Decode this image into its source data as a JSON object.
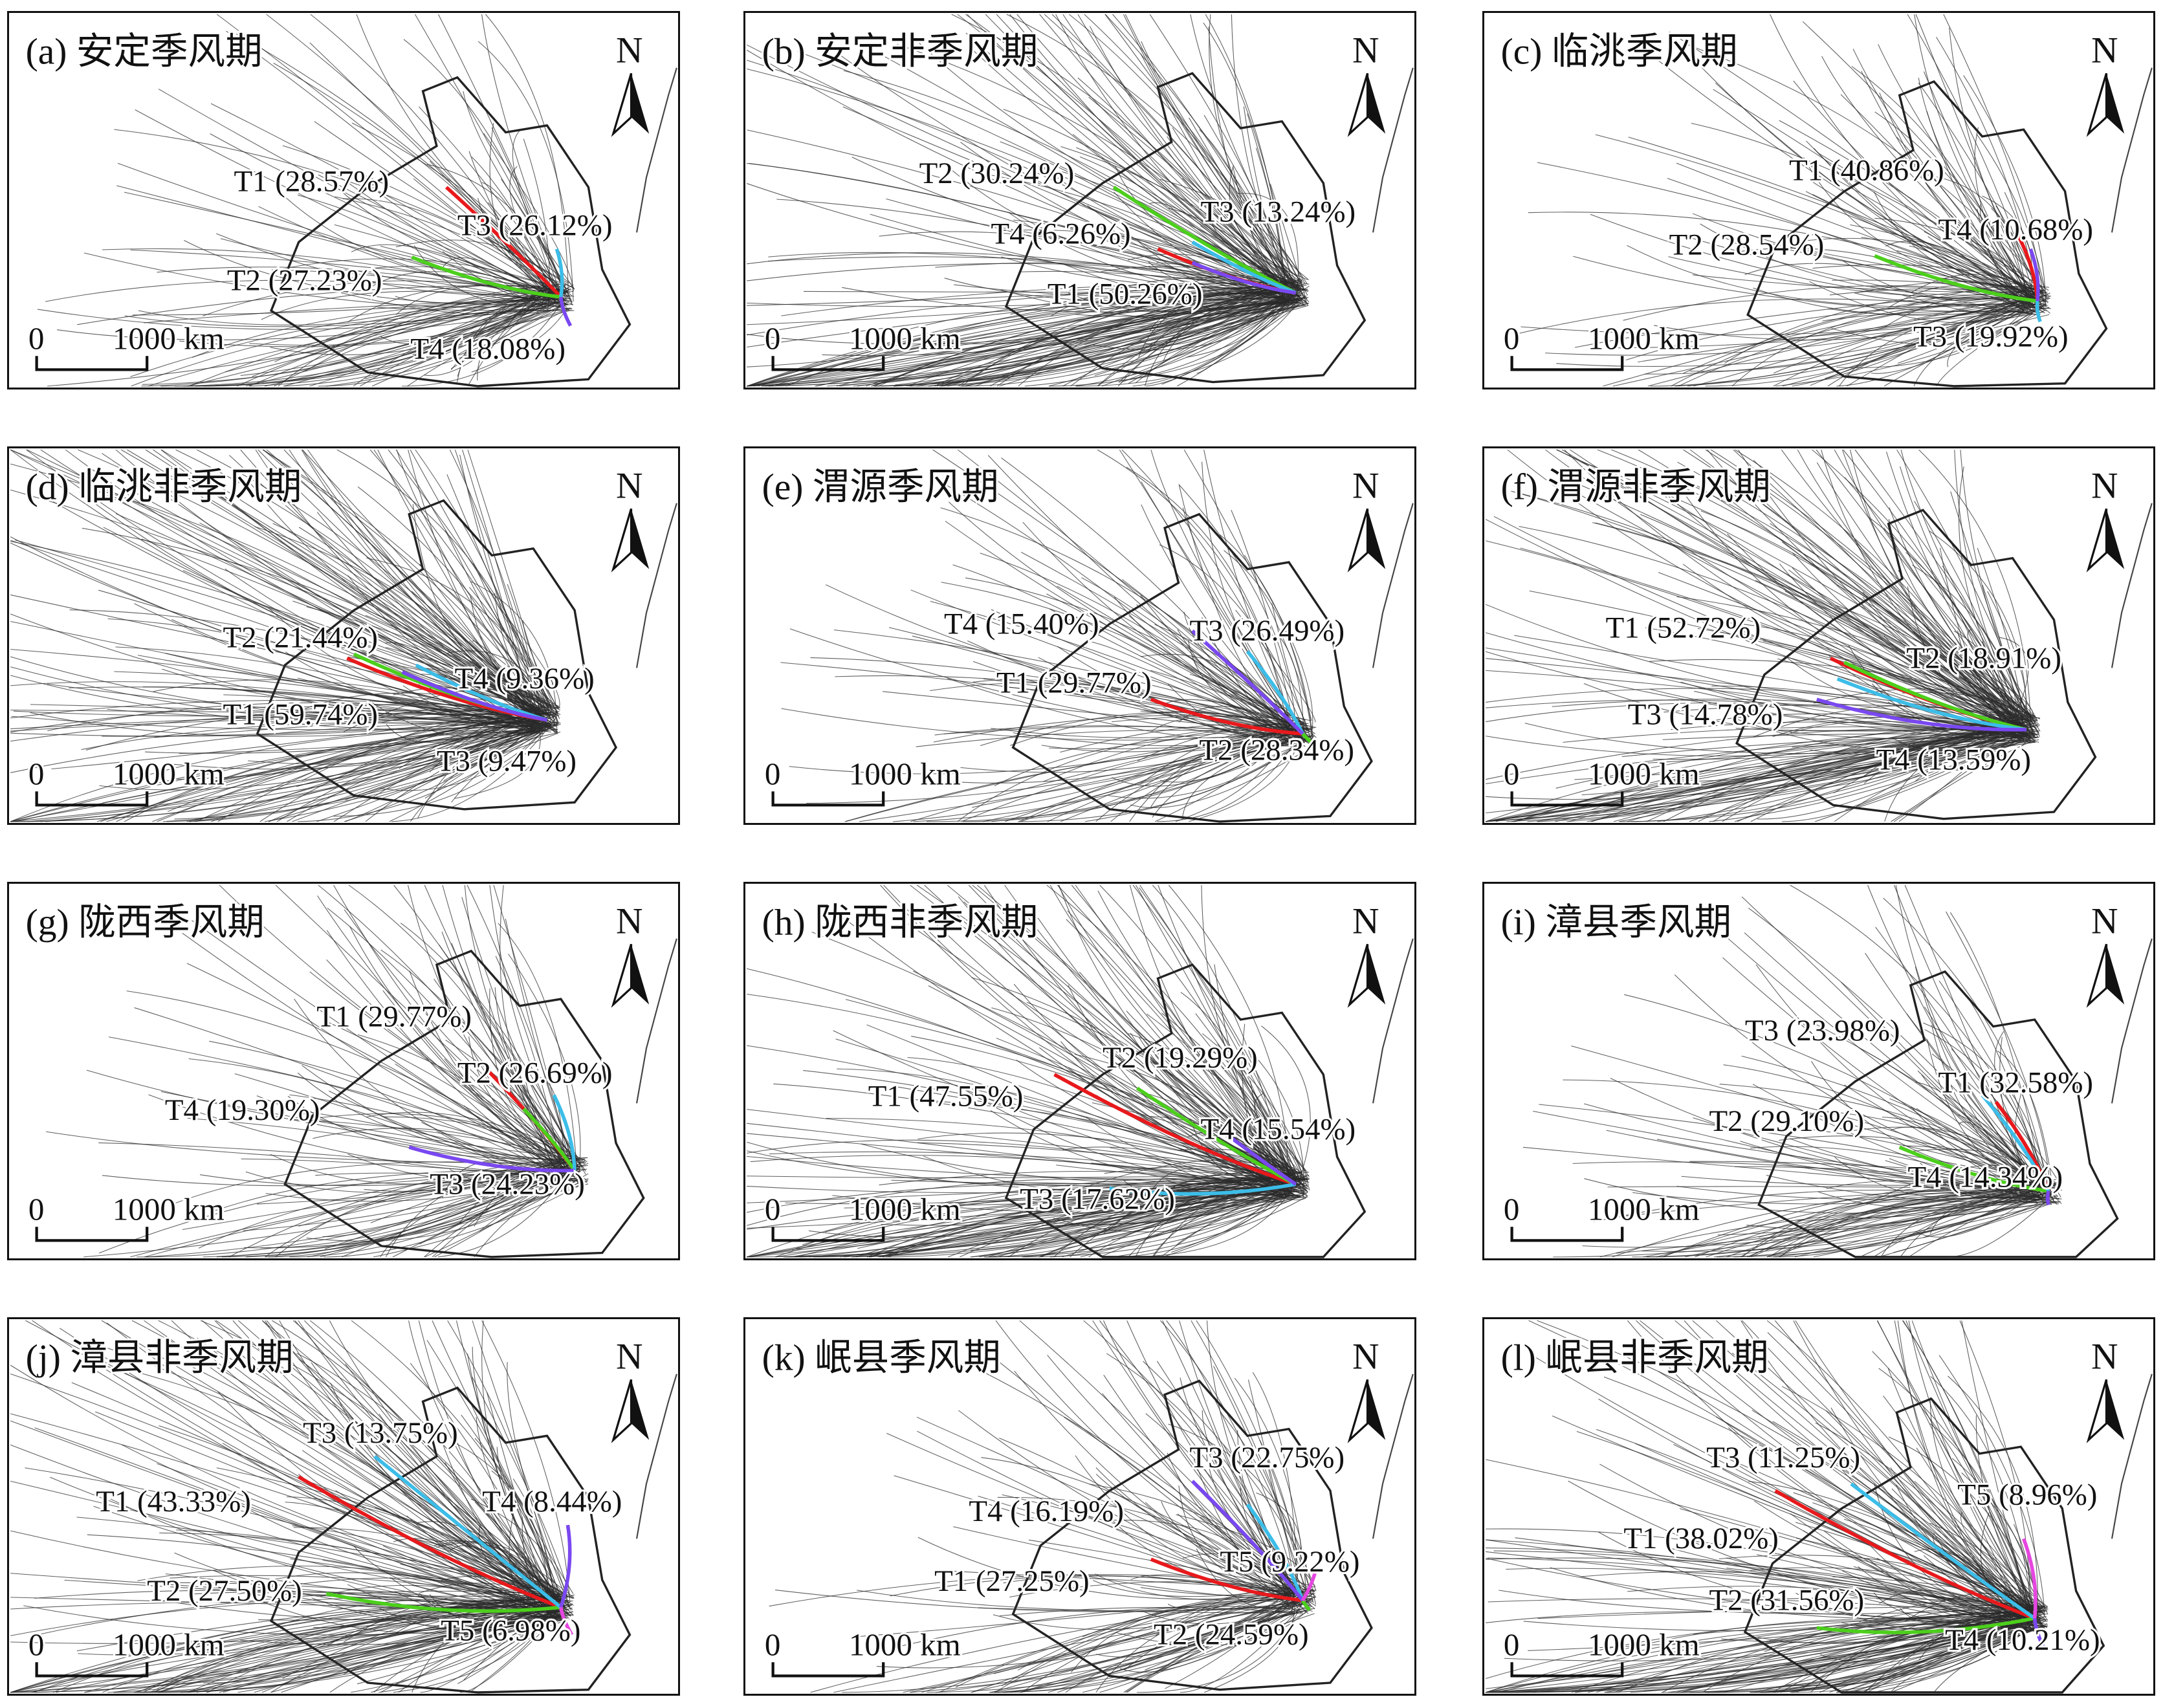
{
  "cluster_colors": {
    "T1": "#e8191c",
    "T2": "#4ccf1c",
    "T3": "#3cbde8",
    "T4": "#7a48f0",
    "T5": "#e646e0"
  },
  "scale_bar": {
    "zero": "0",
    "distance": "1000 km"
  },
  "north_label": "N",
  "panels": [
    {
      "title": "(a) 安定季风期",
      "clusters": [
        {
          "id": "T1",
          "label": "T1 (28.57%)"
        },
        {
          "id": "T2",
          "label": "T2 (27.23%)"
        },
        {
          "id": "T3",
          "label": "T3 (26.12%)"
        },
        {
          "id": "T4",
          "label": "T4 (18.08%)"
        }
      ]
    },
    {
      "title": "(b) 安定非季风期",
      "clusters": [
        {
          "id": "T1",
          "label": "T1 (50.26%)"
        },
        {
          "id": "T2",
          "label": "T2 (30.24%)"
        },
        {
          "id": "T3",
          "label": "T3 (13.24%)"
        },
        {
          "id": "T4",
          "label": "T4 (6.26%)"
        }
      ]
    },
    {
      "title": "(c) 临洮季风期",
      "clusters": [
        {
          "id": "T1",
          "label": "T1 (40.86%)"
        },
        {
          "id": "T2",
          "label": "T2 (28.54%)"
        },
        {
          "id": "T3",
          "label": "T3 (19.92%)"
        },
        {
          "id": "T4",
          "label": "T4 (10.68%)"
        }
      ]
    },
    {
      "title": "(d) 临洮非季风期",
      "clusters": [
        {
          "id": "T1",
          "label": "T1 (59.74%)"
        },
        {
          "id": "T2",
          "label": "T2 (21.44%)"
        },
        {
          "id": "T3",
          "label": "T3 (9.47%)"
        },
        {
          "id": "T4",
          "label": "T4 (9.36%)"
        }
      ]
    },
    {
      "title": "(e) 渭源季风期",
      "clusters": [
        {
          "id": "T1",
          "label": "T1 (29.77%)"
        },
        {
          "id": "T2",
          "label": "T2 (28.34%)"
        },
        {
          "id": "T3",
          "label": "T3 (26.49%)"
        },
        {
          "id": "T4",
          "label": "T4 (15.40%)"
        }
      ]
    },
    {
      "title": "(f) 渭源非季风期",
      "clusters": [
        {
          "id": "T1",
          "label": "T1 (52.72%)"
        },
        {
          "id": "T2",
          "label": "T2 (18.91%)"
        },
        {
          "id": "T3",
          "label": "T3 (14.78%)"
        },
        {
          "id": "T4",
          "label": "T4 (13.59%)"
        }
      ]
    },
    {
      "title": "(g) 陇西季风期",
      "clusters": [
        {
          "id": "T1",
          "label": "T1 (29.77%)"
        },
        {
          "id": "T2",
          "label": "T2 (26.69%)"
        },
        {
          "id": "T3",
          "label": "T3 (24.23%)"
        },
        {
          "id": "T4",
          "label": "T4 (19.30%)"
        }
      ]
    },
    {
      "title": "(h) 陇西非季风期",
      "clusters": [
        {
          "id": "T1",
          "label": "T1 (47.55%)"
        },
        {
          "id": "T2",
          "label": "T2 (19.29%)"
        },
        {
          "id": "T3",
          "label": "T3 (17.62%)"
        },
        {
          "id": "T4",
          "label": "T4 (15.54%)"
        }
      ]
    },
    {
      "title": "(i) 漳县季风期",
      "clusters": [
        {
          "id": "T1",
          "label": "T1 (32.58%)"
        },
        {
          "id": "T2",
          "label": "T2 (29.10%)"
        },
        {
          "id": "T3",
          "label": "T3 (23.98%)"
        },
        {
          "id": "T4",
          "label": "T4 (14.34%)"
        }
      ]
    },
    {
      "title": "(j) 漳县非季风期",
      "clusters": [
        {
          "id": "T1",
          "label": "T1 (43.33%)"
        },
        {
          "id": "T2",
          "label": "T2 (27.50%)"
        },
        {
          "id": "T3",
          "label": "T3 (13.75%)"
        },
        {
          "id": "T4",
          "label": "T4 (8.44%)"
        },
        {
          "id": "T5",
          "label": "T5 (6.98%)"
        }
      ]
    },
    {
      "title": "(k) 岷县季风期",
      "clusters": [
        {
          "id": "T1",
          "label": "T1 (27.25%)"
        },
        {
          "id": "T2",
          "label": "T2 (24.59%)"
        },
        {
          "id": "T3",
          "label": "T3 (22.75%)"
        },
        {
          "id": "T4",
          "label": "T4 (16.19%)"
        },
        {
          "id": "T5",
          "label": "T5 (9.22%)"
        }
      ]
    },
    {
      "title": "(l) 岷县非季风期",
      "clusters": [
        {
          "id": "T1",
          "label": "T1 (38.02%)"
        },
        {
          "id": "T2",
          "label": "T2 (31.56%)"
        },
        {
          "id": "T3",
          "label": "T3 (11.25%)"
        },
        {
          "id": "T4",
          "label": "T4 (10.21%)"
        },
        {
          "id": "T5",
          "label": "T5 (8.96%)"
        }
      ]
    }
  ]
}
